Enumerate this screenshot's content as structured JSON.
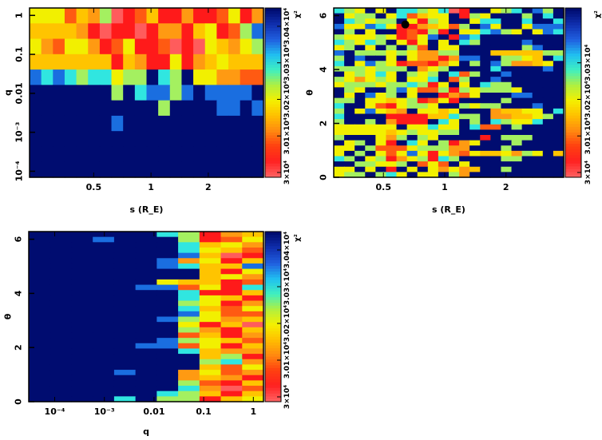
{
  "colorbar": {
    "label": "χ²",
    "z_min": 30000,
    "z_max": 30450,
    "levels_note": "cell digits 0-9 = χ² level from low (red) to high (dark blue)",
    "colors": [
      "#ff5c5c",
      "#ff1a1a",
      "#ff5a12",
      "#ff9a12",
      "#ffc400",
      "#f2f000",
      "#a4f060",
      "#30e6e0",
      "#1a6ee0",
      "#000c70"
    ]
  },
  "chart_data": [
    {
      "type": "heatmap",
      "title": "",
      "xlabel": "s (R_E)",
      "ylabel": "q",
      "xscale": "log",
      "yscale": "log",
      "xlim": [
        0.23,
        3.9
      ],
      "ylim": [
        7e-05,
        1.55
      ],
      "xticks": [
        {
          "v": 0.5,
          "label": "0.5"
        },
        {
          "v": 1,
          "label": "1"
        },
        {
          "v": 2,
          "label": "2"
        }
      ],
      "yticks": [
        {
          "v": 1,
          "label": "1"
        },
        {
          "v": 0.1,
          "label": "0.1"
        },
        {
          "v": 0.01,
          "label": "0.01"
        },
        {
          "v": 0.001,
          "label": "10⁻³"
        },
        {
          "v": 0.0001,
          "label": "10⁻⁴"
        }
      ],
      "colorbar_ticks": [
        {
          "v": 30000,
          "label": "3×10⁴"
        },
        {
          "v": 30100,
          "label": "3.01×10⁴"
        },
        {
          "v": 30200,
          "label": "3.02×10⁴"
        },
        {
          "v": 30300,
          "label": "3.03×10⁴"
        },
        {
          "v": 30400,
          "label": "3.04×10⁴"
        }
      ],
      "z_levels": [
        "55524360124113112513",
        "44443101101331451268",
        "53255312511201054356",
        "44444441431151345444",
        "87876775669769553322",
        "99999996978868988889",
        "99999999999699998898",
        "99999998999999999999",
        "99999999999999999999",
        "99999999999999999999",
        "99999999999999999999"
      ]
    },
    {
      "type": "heatmap",
      "title": "",
      "xlabel": "s (R_E)",
      "ylabel": "θ",
      "xscale": "log",
      "yscale": "linear",
      "xlim": [
        0.285,
        3.84
      ],
      "ylim": [
        0,
        6.283
      ],
      "xticks": [
        {
          "v": 0.5,
          "label": "0.5"
        },
        {
          "v": 1,
          "label": "1"
        },
        {
          "v": 2,
          "label": "2"
        }
      ],
      "yticks": [
        {
          "v": 0,
          "label": "0"
        },
        {
          "v": 2,
          "label": "2"
        },
        {
          "v": 4,
          "label": "4"
        },
        {
          "v": 6,
          "label": "6"
        }
      ],
      "colorbar_ticks": [
        {
          "v": 30000,
          "label": "3×10⁴"
        },
        {
          "v": 30100,
          "label": "3.01×10⁴"
        },
        {
          "v": 30200,
          "label": "3.02×10⁴"
        },
        {
          "v": 30300,
          "label": "3.03×10⁴"
        }
      ],
      "marker": {
        "s": 0.64,
        "theta": 5.67
      },
      "z_levels": [
        "7659597765701995679869",
        "9566957245591659996979",
        "9765669516599577997997",
        "8558751134526985995888",
        "9695991216195578659587",
        "6555651258918799999999",
        "7657695159597699998999",
        "5695969629559999996899",
        "8966656533669994444466",
        "6989959533138899665497",
        "7958651221359698633459",
        "6665666935699997999989",
        "9565759656972699899999",
        "6535659557926998999999",
        "5666566761595976699999",
        "9659968522616566659999",
        "9598569599132599988999",
        "6695545612519999699999",
        "7995215665996566999899",
        "6958543955459993445597",
        "7999911114476693344569",
        "6996931119759697655799",
        "5555559557559722969999",
        "5555545655669999999999",
        "6999536965999919666999",
        "9569519759613599969999",
        "5596222566633999699999",
        "5969525851532544536594",
        "7695613561769999669999",
        "9966556925295999999999",
        "5595919595353499699999",
        "5669675955963999999999"
      ]
    },
    {
      "type": "heatmap",
      "title": "",
      "xlabel": "q",
      "ylabel": "θ",
      "xscale": "log",
      "yscale": "linear",
      "xlim": [
        3e-05,
        1.6
      ],
      "ylim": [
        0,
        6.283
      ],
      "xticks": [
        {
          "v": 0.0001,
          "label": "10⁻⁴"
        },
        {
          "v": 0.001,
          "label": "10⁻³"
        },
        {
          "v": 0.01,
          "label": "0.01"
        },
        {
          "v": 0.1,
          "label": "0.1"
        },
        {
          "v": 1,
          "label": "1"
        }
      ],
      "yticks": [
        {
          "v": 0,
          "label": "0"
        },
        {
          "v": 2,
          "label": "2"
        },
        {
          "v": 4,
          "label": "4"
        },
        {
          "v": 6,
          "label": "6"
        }
      ],
      "colorbar_ticks": [
        {
          "v": 30000,
          "label": "3×10⁴"
        },
        {
          "v": 30100,
          "label": "3.01×10⁴"
        },
        {
          "v": 30200,
          "label": "3.02×10⁴"
        },
        {
          "v": 30300,
          "label": "3.03×10⁴"
        },
        {
          "v": 30400,
          "label": "3.04×10⁴"
        }
      ],
      "z_levels": [
        "99999976134",
        "99989996125",
        "99999997453",
        "99999997542",
        "99999998401",
        "99999983514",
        "99999987448",
        "99999999415",
        "99999999453",
        "99999954412",
        "99999882517",
        "99999997114",
        "99999997541",
        "99999996513",
        "99999997425",
        "99999998522",
        "99999986534",
        "99999995140",
        "99999996314",
        "99999992413",
        "99999986542",
        "99999882514",
        "99999997433",
        "99999999461",
        "99999999673",
        "99999999425",
        "99998993523",
        "99999993431",
        "99999996214",
        "99999997302",
        "99999976414",
        "99997966145"
      ]
    }
  ]
}
